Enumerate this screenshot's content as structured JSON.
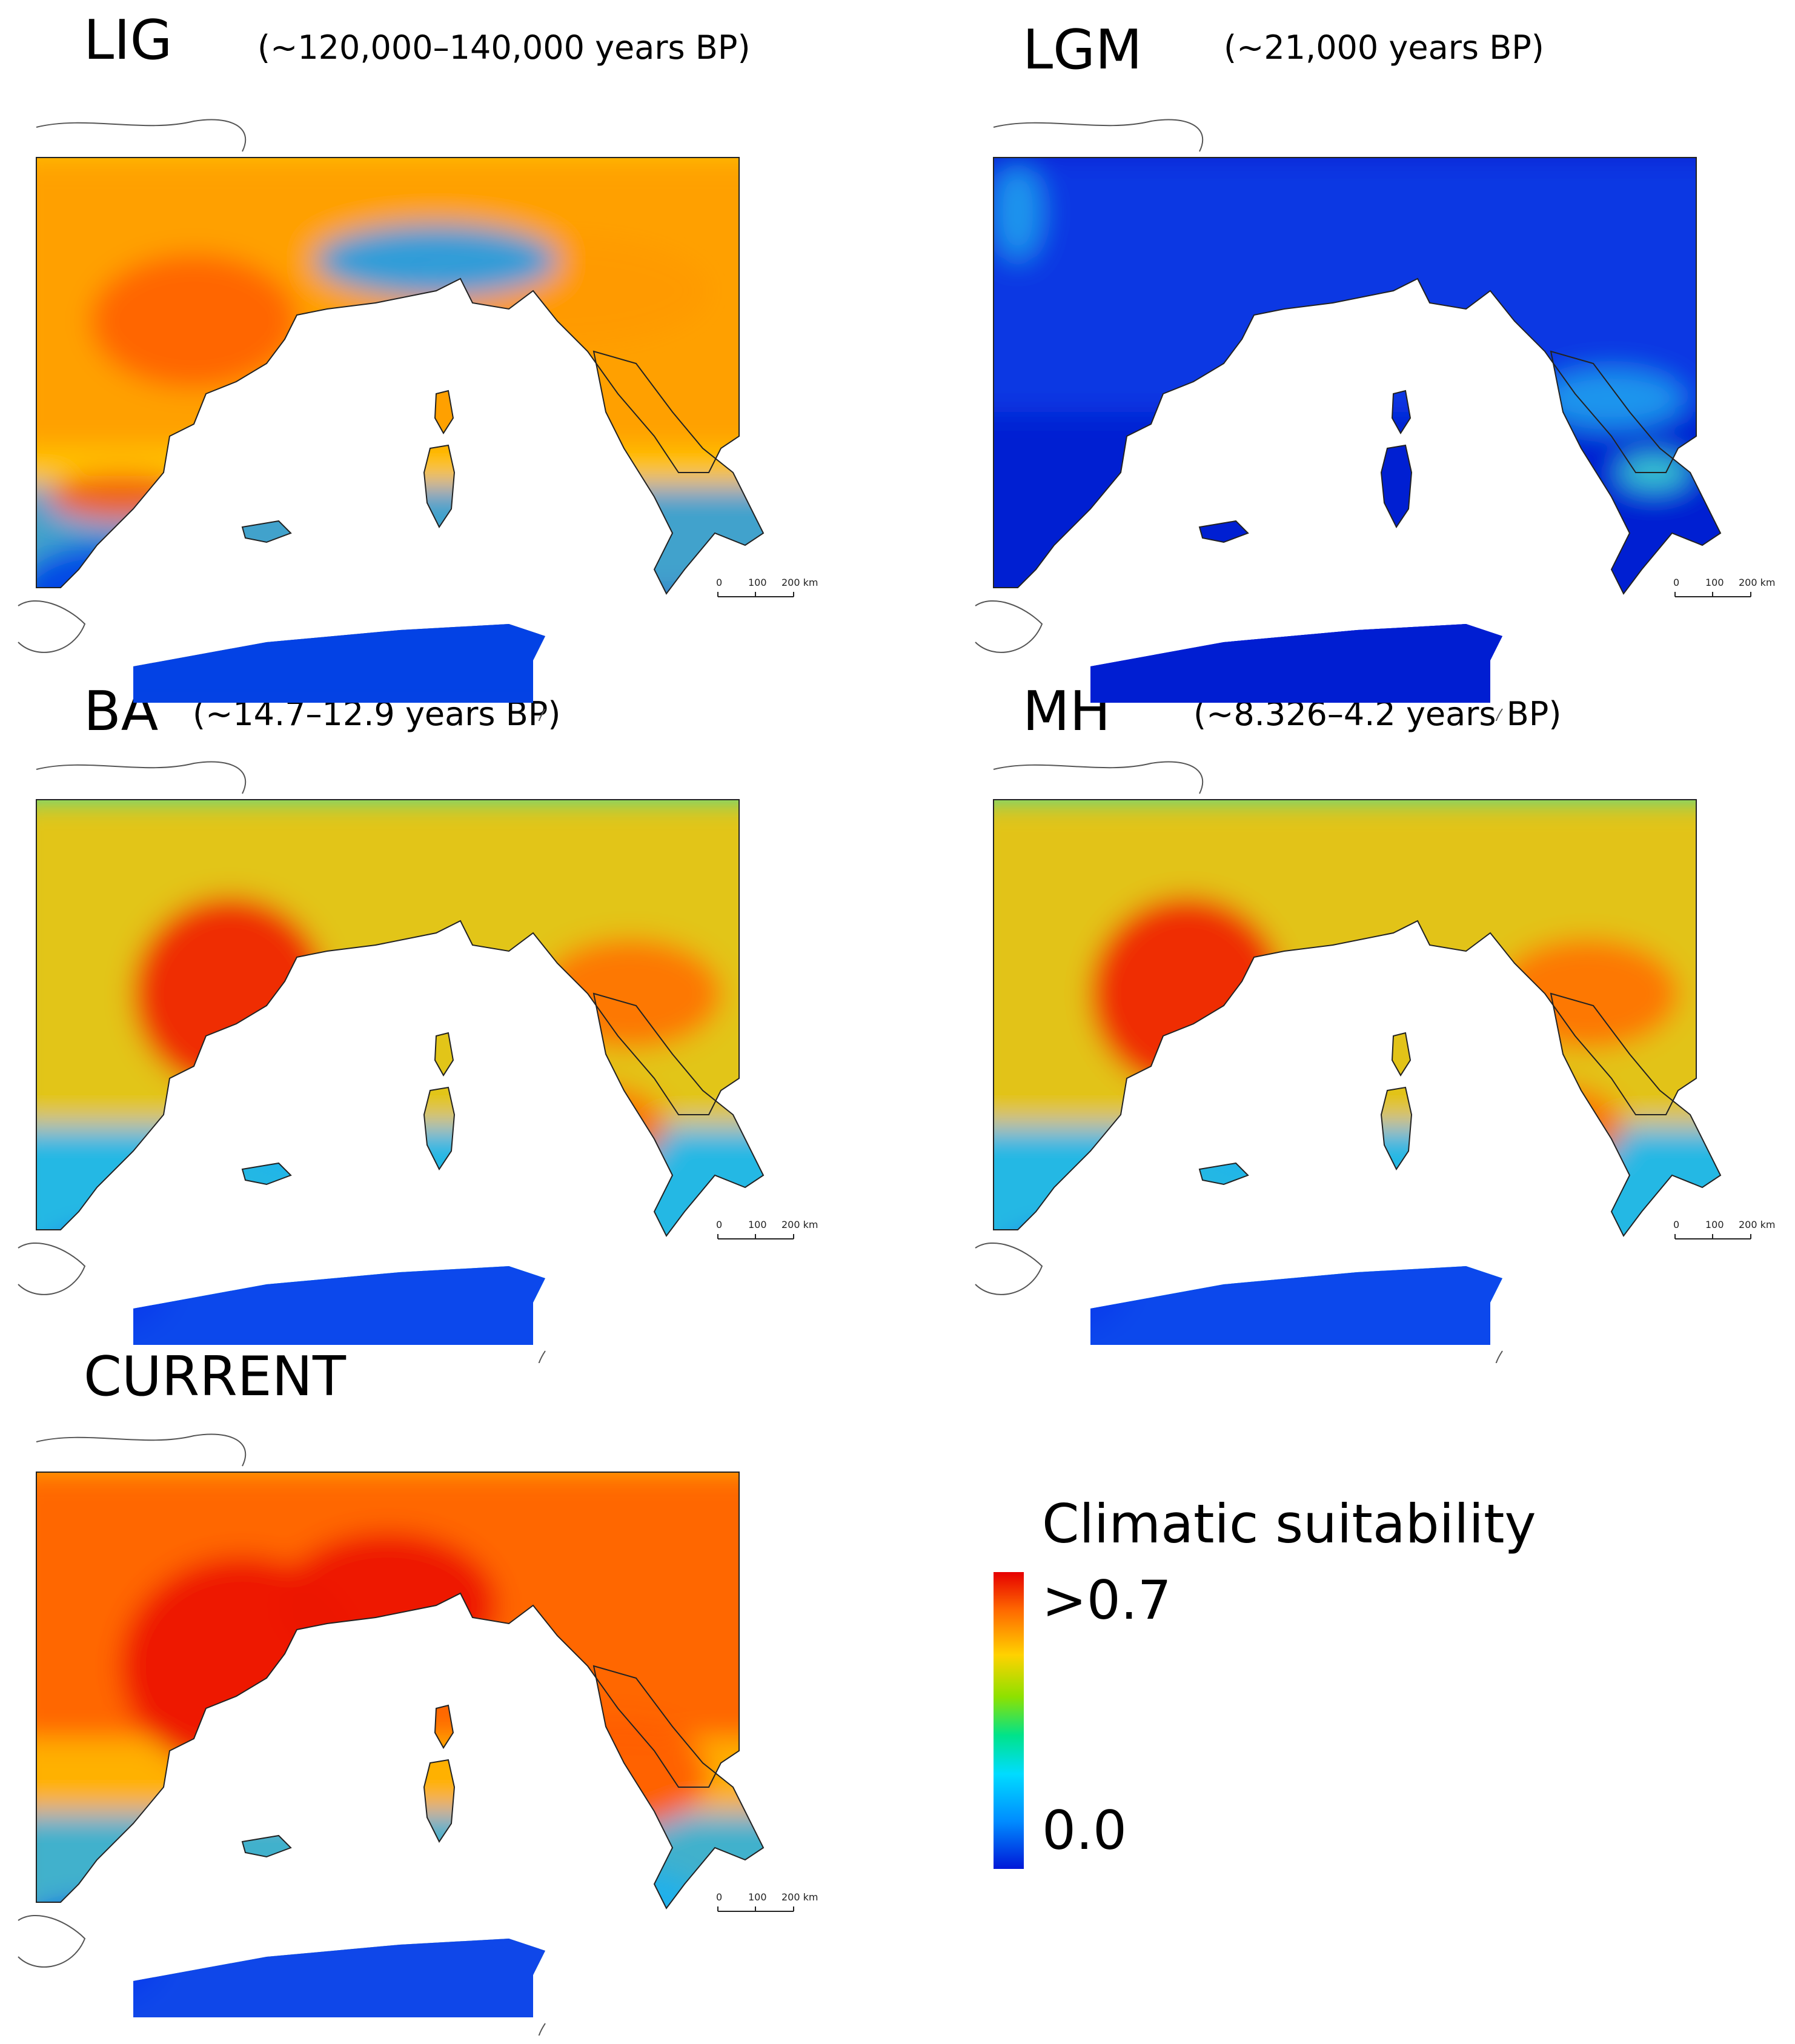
{
  "panels": [
    {
      "id": "lig",
      "title": "LIG",
      "subtitle": "(~120,000–140,000 years BP)",
      "scale_labels": [
        "0",
        "100",
        "200 km"
      ],
      "dominant_suitability": "medium-high",
      "ramp": [
        "#0040e8",
        "#1c9cf0",
        "#34e0b0",
        "#ffc400",
        "#ff9a00",
        "#ff6000"
      ]
    },
    {
      "id": "lgm",
      "title": "LGM",
      "subtitle": "(~21,000 years BP)",
      "scale_labels": [
        "0",
        "100",
        "200 km"
      ],
      "dominant_suitability": "low",
      "ramp": [
        "#001ed2",
        "#0a3de6",
        "#1466f0",
        "#1ea0f0",
        "#3ed8d0",
        "#a8e24a"
      ]
    },
    {
      "id": "ba",
      "title": "BA",
      "subtitle": "(~14.7–12.9 years BP)",
      "scale_labels": [
        "0",
        "100",
        "200 km"
      ],
      "dominant_suitability": "high",
      "ramp": [
        "#0a3cec",
        "#1eb0f0",
        "#3ee0a0",
        "#ffc000",
        "#ff7000",
        "#f01e00"
      ]
    },
    {
      "id": "mh",
      "title": "MH",
      "subtitle": "(~8.326–4.2 years BP)",
      "scale_labels": [
        "0",
        "100",
        "200 km"
      ],
      "dominant_suitability": "high",
      "ramp": [
        "#0a3cec",
        "#1eb0f0",
        "#3ee0a0",
        "#ffbe00",
        "#ff7000",
        "#f01e00"
      ]
    },
    {
      "id": "current",
      "title": "CURRENT",
      "subtitle": "",
      "scale_labels": [
        "0",
        "100",
        "200 km"
      ],
      "dominant_suitability": "highest",
      "ramp": [
        "#0a3cec",
        "#1eb0f0",
        "#3ee0a0",
        "#ffb000",
        "#ff5a00",
        "#ec1400"
      ]
    }
  ],
  "legend": {
    "title": "Climatic suitability",
    "max_label": ">0.7",
    "min_label": "0.0",
    "colors": [
      "#e60000",
      "#ff6a00",
      "#ffd200",
      "#8ee100",
      "#00e38a",
      "#00dcff",
      "#008cff",
      "#0018d8"
    ]
  }
}
